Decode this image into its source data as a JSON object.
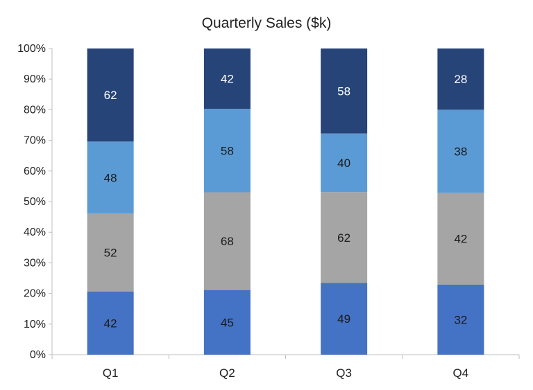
{
  "chart_data": {
    "type": "bar",
    "stacked": true,
    "normalized": true,
    "title": "Quarterly Sales ($k)",
    "xlabel": "",
    "ylabel": "",
    "categories": [
      "Q1",
      "Q2",
      "Q3",
      "Q4"
    ],
    "ylim": [
      0,
      100
    ],
    "y_ticks": [
      "0%",
      "10%",
      "20%",
      "30%",
      "40%",
      "50%",
      "60%",
      "70%",
      "80%",
      "90%",
      "100%"
    ],
    "grid": false,
    "legend": "none",
    "series": [
      {
        "values": [
          42,
          45,
          49,
          32
        ],
        "color": "#4472C4",
        "label_color": "#1a1a1a"
      },
      {
        "values": [
          52,
          68,
          62,
          42
        ],
        "color": "#A5A5A5",
        "label_color": "#1a1a1a"
      },
      {
        "values": [
          48,
          58,
          40,
          38
        ],
        "color": "#5B9BD5",
        "label_color": "#1a1a1a"
      },
      {
        "values": [
          62,
          42,
          58,
          28
        ],
        "color": "#264478",
        "label_color": "#ffffff"
      }
    ]
  }
}
